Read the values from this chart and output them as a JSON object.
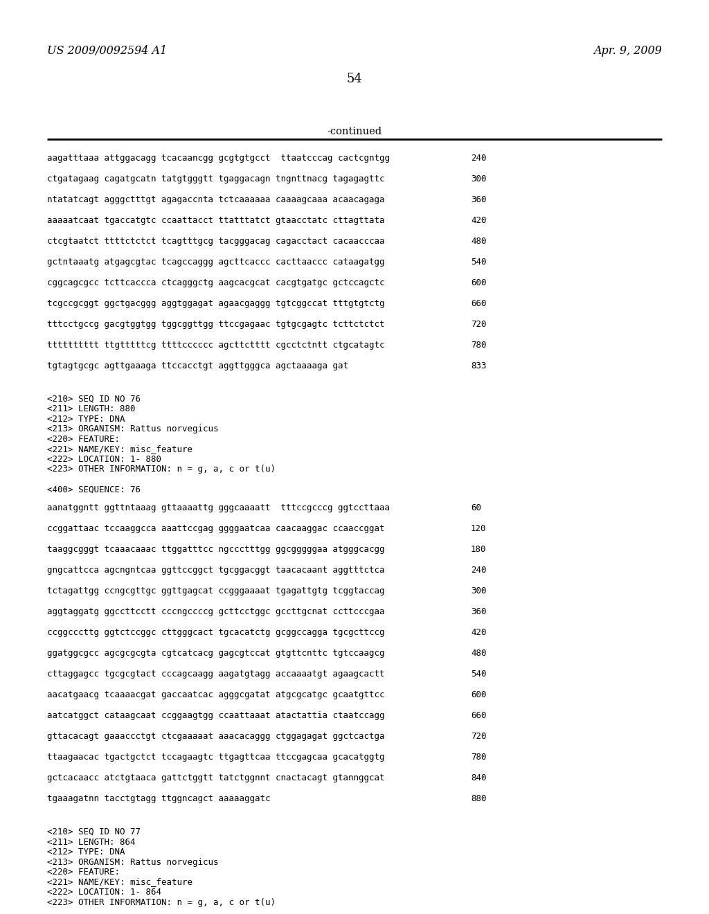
{
  "header_left": "US 2009/0092594 A1",
  "header_right": "Apr. 9, 2009",
  "page_number": "54",
  "continued_label": "-continued",
  "background_color": "#ffffff",
  "text_color": "#000000",
  "sequence_lines": [
    {
      "text": "aagatttaaa attggacagg tcacaancgg gcgtgtgcct  ttaatcccag cactcgntgg",
      "num": "240"
    },
    {
      "text": "ctgatagaag cagatgcatn tatgtgggtt tgaggacagn tngnttnacg tagagagttc",
      "num": "300"
    },
    {
      "text": "ntatatcagt agggctttgt agagaccnta tctcaaaaaa caaaagcaaa acaacagaga",
      "num": "360"
    },
    {
      "text": "aaaaatcaat tgaccatgtc ccaattacct ttatttatct gtaacctatc cttagttata",
      "num": "420"
    },
    {
      "text": "ctcgtaatct ttttctctct tcagtttgcg tacgggacag cagacctact cacaacccaa",
      "num": "480"
    },
    {
      "text": "gctntaaatg atgagcgtac tcagccaggg agcttcaccc cacttaaccc cataagatgg",
      "num": "540"
    },
    {
      "text": "cggcagcgcc tcttcaccca ctcagggctg aagcacgcat cacgtgatgc gctccagctc",
      "num": "600"
    },
    {
      "text": "tcgccgcggt ggctgacggg aggtggagat agaacgaggg tgtcggccat tttgtgtctg",
      "num": "660"
    },
    {
      "text": "tttcctgccg gacgtggtgg tggcggttgg ttccgagaac tgtgcgagtc tcttctctct",
      "num": "720"
    },
    {
      "text": "tttttttttt ttgtttttcg ttttcccccc agcttctttt cgcctctntt ctgcatagtc",
      "num": "780"
    },
    {
      "text": "tgtagtgcgc agttgaaaga ttccacctgt aggttgggca agctaaaaga gat",
      "num": "833"
    }
  ],
  "annotation_block_1": [
    "<210> SEQ ID NO 76",
    "<211> LENGTH: 880",
    "<212> TYPE: DNA",
    "<213> ORGANISM: Rattus norvegicus",
    "<220> FEATURE:",
    "<221> NAME/KEY: misc_feature",
    "<222> LOCATION: 1- 880",
    "<223> OTHER INFORMATION: n = g, a, c or t(u)",
    "",
    "<400> SEQUENCE: 76"
  ],
  "sequence_lines_2": [
    {
      "text": "aanatggntt ggttntaaag gttaaaattg gggcaaaatt  tttccgcccg ggtccttaaa",
      "num": "60"
    },
    {
      "text": "ccggattaac tccaaggcca aaattccgag ggggaatcaa caacaaggac ccaaccggat",
      "num": "120"
    },
    {
      "text": "taaggcgggt tcaaacaaac ttggatttcc ngccctttgg ggcgggggaa atgggcacgg",
      "num": "180"
    },
    {
      "text": "gngcattcca agcngntcaa ggttccggct tgcggacggt taacacaant aggtttctca",
      "num": "240"
    },
    {
      "text": "tctagattgg ccngcgttgc ggttgagcat ccgggaaaat tgagattgtg tcggtaccag",
      "num": "300"
    },
    {
      "text": "aggtaggatg ggccttcctt cccngccccg gcttcctggc gccttgcnat ccttcccgaa",
      "num": "360"
    },
    {
      "text": "ccggcccttg ggtctccggc cttgggcact tgcacatctg gcggccagga tgcgcttccg",
      "num": "420"
    },
    {
      "text": "ggatggcgcc agcgcgcgta cgtcatcacg gagcgtccat gtgttcnttc tgtccaagcg",
      "num": "480"
    },
    {
      "text": "cttaggagcc tgcgcgtact cccagcaagg aagatgtagg accaaaatgt agaagcactt",
      "num": "540"
    },
    {
      "text": "aacatgaacg tcaaaacgat gaccaatcac agggcgatat atgcgcatgc gcaatgttcc",
      "num": "600"
    },
    {
      "text": "aatcatggct cataagcaat ccggaagtgg ccaattaaat atactattia ctaatccagg",
      "num": "660"
    },
    {
      "text": "gttacacagt gaaaccctgt ctcgaaaaat aaacacaggg ctggagagat ggctcactga",
      "num": "720"
    },
    {
      "text": "ttaagaacac tgactgctct tccagaagtc ttgagttcaa ttccgagcaa gcacatggtg",
      "num": "780"
    },
    {
      "text": "gctcacaacc atctgtaaca gattctggtt tatctggnnt cnactacagt gtannggcat",
      "num": "840"
    },
    {
      "text": "tgaaagatnn tacctgtagg ttggncagct aaaaaggatc",
      "num": "880"
    }
  ],
  "annotation_block_2": [
    "<210> SEQ ID NO 77",
    "<211> LENGTH: 864",
    "<212> TYPE: DNA",
    "<213> ORGANISM: Rattus norvegicus",
    "<220> FEATURE:",
    "<221> NAME/KEY: misc_feature",
    "<222> LOCATION: 1- 864",
    "<223> OTHER INFORMATION: n = g, a, c or t(u)",
    "",
    "<400> SEQUENCE: 77"
  ]
}
